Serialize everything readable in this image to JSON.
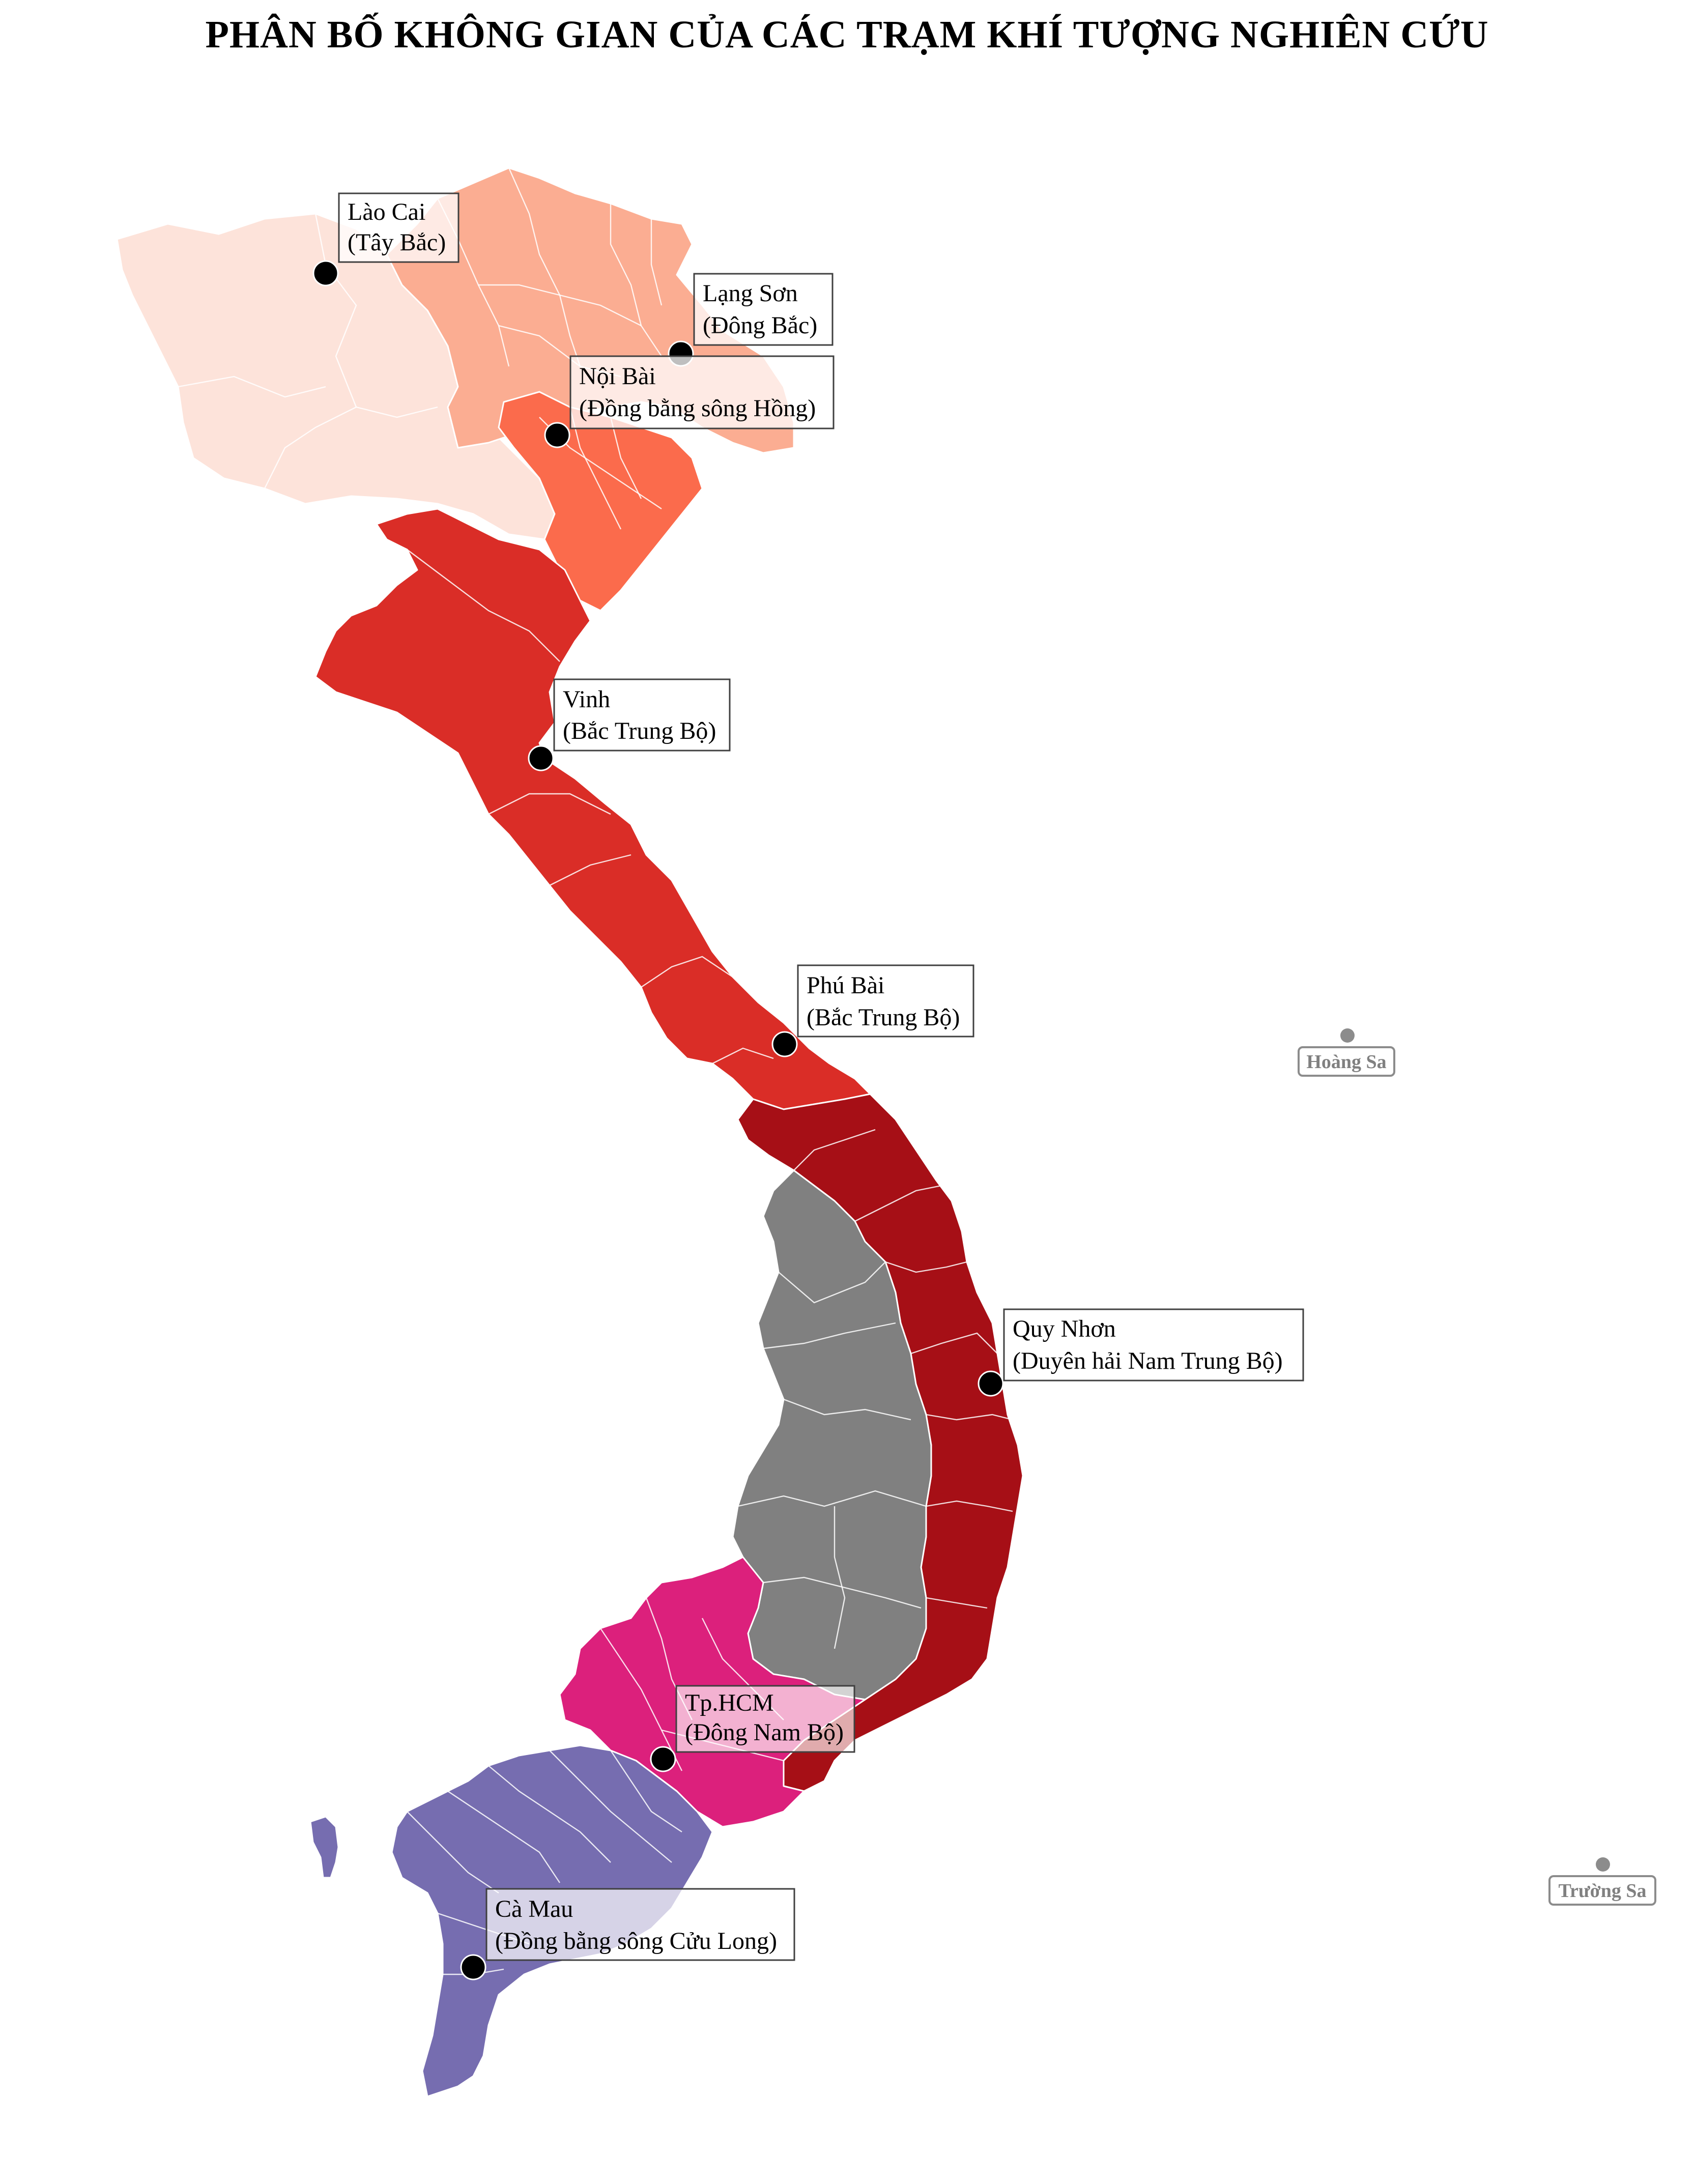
{
  "title": "PHÂN BỐ KHÔNG GIAN CỦA CÁC TRẠM KHÍ TƯỢNG NGHIÊN CỨU",
  "colors": {
    "tay_bac": "#fde3da",
    "dong_bac": "#fbad92",
    "dong_bang_song_hong": "#fb6b4c",
    "bac_trung_bo": "#da2d27",
    "duyen_hai_nam_trung_bo": "#a60f16",
    "tay_nguyen": "#808080",
    "dong_nam_bo": "#dc207c",
    "dong_bang_song_cuu_long": "#766db0",
    "station_marker": "#000000",
    "island_marker": "#8c8c8c",
    "island_text": "#808080"
  },
  "stations": [
    {
      "name": "Lào Cai",
      "region": "(Tây Bắc)"
    },
    {
      "name": "Lạng Sơn",
      "region": "(Đông Bắc)"
    },
    {
      "name": "Nội Bài",
      "region": "(Đồng bằng sông Hồng)"
    },
    {
      "name": "Vinh",
      "region": "(Bắc Trung Bộ)"
    },
    {
      "name": "Phú Bài",
      "region": "(Bắc Trung Bộ)"
    },
    {
      "name": "Quy Nhơn",
      "region": "(Duyên hải Nam Trung Bộ)"
    },
    {
      "name": "Tp.HCM",
      "region": "(Đông Nam Bộ)"
    },
    {
      "name": "Cà Mau",
      "region": "(Đồng bằng sông Cửu Long)"
    }
  ],
  "islands": [
    {
      "name": "Hoàng Sa"
    },
    {
      "name": "Trường Sa"
    }
  ]
}
